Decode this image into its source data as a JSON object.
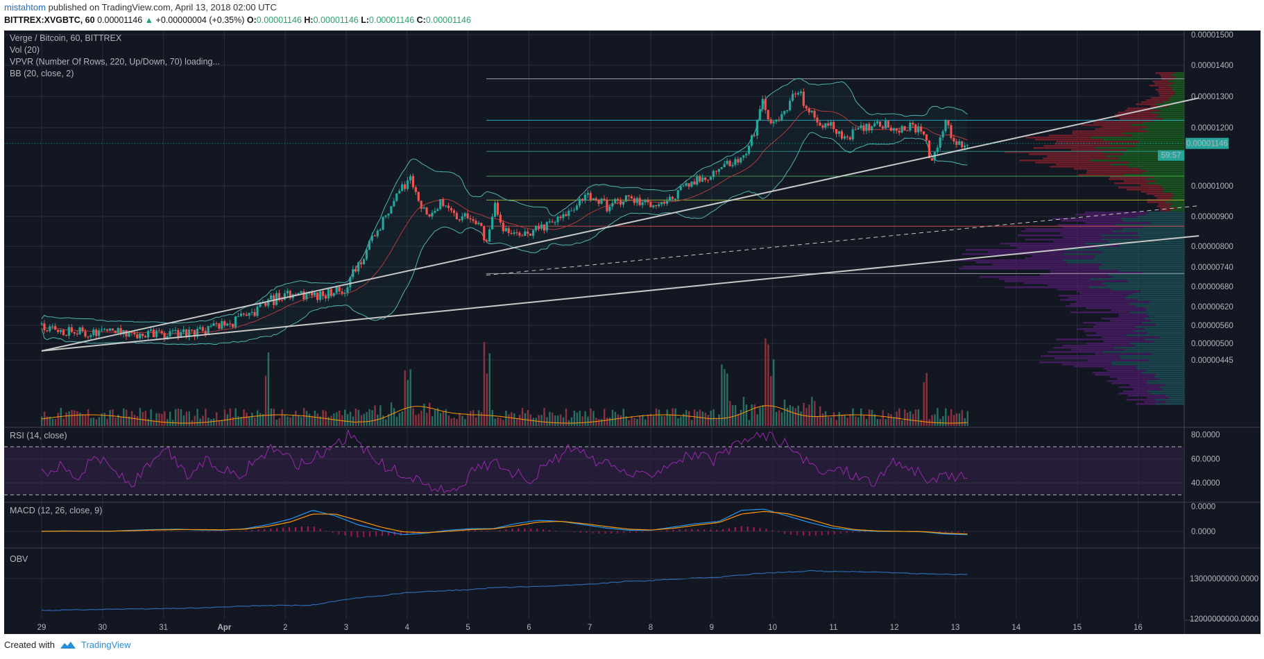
{
  "header": {
    "author": "mistahtom",
    "published": "published on TradingView.com, April 13, 2018 02:00 UTC"
  },
  "quote": {
    "symbol": "BITTREX:XVGBTC, 60",
    "price": "0.00001146",
    "change": "+0.00000004 (+0.35%)",
    "o_label": "O:",
    "o": "0.00001146",
    "h_label": "H:",
    "h": "0.00001146",
    "l_label": "L:",
    "l": "0.00001146",
    "c_label": "C:",
    "c": "0.00001146"
  },
  "legend": {
    "title": "Verge / Bitcoin, 60, BITTREX",
    "vol": "Vol (20)",
    "vpvr": "VPVR (Number Of Rows, 220, Up/Down, 70) loading...",
    "bb": "BB (20, close, 2)",
    "rsi": "RSI (14, close)",
    "macd": "MACD (12, 26, close, 9)",
    "obv": "OBV"
  },
  "colors": {
    "background": "#131722",
    "up": "#26a69a",
    "down": "#ef5350",
    "bb": "#4fb5b0",
    "rsi": "#9c27b0",
    "macd": "#2196f3",
    "signal": "#ff9800",
    "obv": "#2d6ab0",
    "trendline": "#c8c8c8"
  },
  "chart_data": [
    {
      "type": "candlestick",
      "title": "Verge / Bitcoin, 60, BITTREX",
      "x_tick_labels": [
        "29",
        "30",
        "31",
        "Apr",
        "2",
        "3",
        "4",
        "5",
        "6",
        "7",
        "8",
        "9",
        "10",
        "11",
        "12",
        "13",
        "14",
        "15",
        "16"
      ],
      "y_tick_labels": [
        "0.00001500",
        "0.00001400",
        "0.00001300",
        "0.00001200",
        "0.00001000",
        "0.00000900",
        "0.00000800",
        "0.00000740",
        "0.00000680",
        "0.00000620",
        "0.00000560",
        "0.00000500",
        "0.00000445"
      ],
      "y_ticks": [
        1.5e-05,
        1.4e-05,
        1.3e-05,
        1.2e-05,
        1e-05,
        9e-06,
        8e-06,
        7.4e-06,
        6.8e-06,
        6.2e-06,
        5.6e-06,
        5e-06,
        4.45e-06
      ],
      "last_price_label": "0.00001146",
      "countdown_label": "59:57",
      "close_path": [
        [
          0,
          5.5
        ],
        [
          0.5,
          5.4
        ],
        [
          1,
          5.3
        ],
        [
          1.2,
          5.5
        ],
        [
          1.5,
          5.3
        ],
        [
          2,
          5.3
        ],
        [
          2.6,
          5.4
        ],
        [
          3,
          5.6
        ],
        [
          3.4,
          5.9
        ],
        [
          3.6,
          6.2
        ],
        [
          3.9,
          6.5
        ],
        [
          4.2,
          6.6
        ],
        [
          4.6,
          6.5
        ],
        [
          5.0,
          6.8
        ],
        [
          5.3,
          7.8
        ],
        [
          5.6,
          8.8
        ],
        [
          5.9,
          9.9
        ],
        [
          6.05,
          10.3
        ],
        [
          6.2,
          9.4
        ],
        [
          6.4,
          9.1
        ],
        [
          6.6,
          9.5
        ],
        [
          6.8,
          9.0
        ],
        [
          7.0,
          9.0
        ],
        [
          7.2,
          8.6
        ],
        [
          7.3,
          8.2
        ],
        [
          7.45,
          9.4
        ],
        [
          7.6,
          8.5
        ],
        [
          7.8,
          8.3
        ],
        [
          8.0,
          8.4
        ],
        [
          8.4,
          8.8
        ],
        [
          8.6,
          9.0
        ],
        [
          8.85,
          9.6
        ],
        [
          9.0,
          9.7
        ],
        [
          9.3,
          9.3
        ],
        [
          9.6,
          9.6
        ],
        [
          9.9,
          9.4
        ],
        [
          10.3,
          9.5
        ],
        [
          10.6,
          10.0
        ],
        [
          10.9,
          10.3
        ],
        [
          11.2,
          10.7
        ],
        [
          11.5,
          10.9
        ],
        [
          11.7,
          11.8
        ],
        [
          11.85,
          12.9
        ],
        [
          12.0,
          12.0
        ],
        [
          12.2,
          12.5
        ],
        [
          12.4,
          13.2
        ],
        [
          12.7,
          12.2
        ],
        [
          13.0,
          12.0
        ],
        [
          13.2,
          11.7
        ],
        [
          13.45,
          11.9
        ],
        [
          13.7,
          12.2
        ],
        [
          14.0,
          12.0
        ],
        [
          14.3,
          12.0
        ],
        [
          14.5,
          11.9
        ],
        [
          14.6,
          10.7
        ],
        [
          14.75,
          11.8
        ],
        [
          14.85,
          12.1
        ],
        [
          15.0,
          11.4
        ],
        [
          15.2,
          11.46
        ]
      ],
      "trendlines": [
        {
          "x1": 0,
          "y1": 4.75,
          "x2": 19,
          "y2": 12.95
        },
        {
          "x1": 0,
          "y1": 4.75,
          "x2": 19,
          "y2": 8.35
        },
        {
          "x1": 7.3,
          "y1": 7.15,
          "x2": 19,
          "y2": 9.35,
          "dashed": true
        }
      ],
      "fib_levels": [
        {
          "x_start": 7.3,
          "value": 1.3563e-05,
          "color": "#b2b5be"
        },
        {
          "x_start": 7.3,
          "value": 1.2237e-05,
          "color": "#26c6da"
        },
        {
          "x_start": 7.3,
          "value": 1.1186e-05,
          "color": "#26a69a"
        },
        {
          "x_start": 7.3,
          "value": 1.0333e-05,
          "color": "#4caf50"
        },
        {
          "x_start": 7.3,
          "value": 9.536e-06,
          "color": "#c0ca33"
        },
        {
          "x_start": 7.3,
          "value": 8.671e-06,
          "color": "#ef5350"
        },
        {
          "x_start": 7.3,
          "value": 7.2e-06,
          "color": "#b2b5be"
        }
      ]
    },
    {
      "type": "line",
      "title": "RSI (14, close)",
      "y_tick_labels": [
        "80.0000",
        "60.0000",
        "40.0000"
      ],
      "ylim": [
        25,
        85
      ],
      "bands": [
        30,
        70
      ],
      "series": [
        {
          "values": [
            48,
            55,
            45,
            63,
            50,
            38,
            56,
            66,
            45,
            58,
            52,
            47,
            62,
            70,
            55,
            60,
            72,
            80,
            65,
            52,
            47,
            40,
            33,
            38,
            52,
            58,
            48,
            44,
            56,
            68,
            62,
            55,
            50,
            45,
            52,
            60,
            64,
            58,
            68,
            78,
            80,
            72,
            58,
            48,
            52,
            45,
            41,
            58,
            51,
            40,
            47,
            44
          ]
        }
      ]
    },
    {
      "type": "line",
      "title": "MACD (12, 26, close, 9)",
      "y_tick_labels": [
        "0.0000",
        "0.0000"
      ],
      "series": [
        {
          "name": "MACD",
          "values": [
            0,
            0.02,
            0.01,
            0,
            0.05,
            0.08,
            0.1,
            0.06,
            0.05,
            0.12,
            0.3,
            0.55,
            0.95,
            0.7,
            0.3,
            0.05,
            -0.15,
            -0.08,
            0.05,
            0.12,
            0.12,
            0.35,
            0.5,
            0.45,
            0.3,
            0.15,
            0.05,
            0.05,
            0.2,
            0.35,
            0.45,
            0.95,
            1.0,
            0.7,
            0.4,
            0.15,
            0.05,
            0.0,
            0.0,
            -0.02,
            -0.12,
            -0.15
          ]
        },
        {
          "name": "Signal",
          "values": [
            0,
            0.01,
            0.01,
            0.01,
            0.03,
            0.06,
            0.08,
            0.08,
            0.07,
            0.1,
            0.22,
            0.42,
            0.78,
            0.78,
            0.5,
            0.2,
            -0.02,
            -0.06,
            0.0,
            0.08,
            0.11,
            0.25,
            0.42,
            0.45,
            0.35,
            0.22,
            0.1,
            0.06,
            0.14,
            0.28,
            0.4,
            0.78,
            0.9,
            0.8,
            0.55,
            0.25,
            0.08,
            0.02,
            0.0,
            -0.01,
            -0.08,
            -0.12
          ]
        }
      ]
    },
    {
      "type": "line",
      "title": "OBV",
      "y_tick_labels": [
        "13000000000.0000",
        "12000000000.0000"
      ],
      "series": [
        {
          "values": [
            0,
            0.01,
            0.02,
            0.03,
            0.03,
            0.04,
            0.05,
            0.06,
            0.08,
            0.1,
            0.12,
            0.12,
            0.13,
            0.22,
            0.3,
            0.35,
            0.42,
            0.45,
            0.48,
            0.5,
            0.55,
            0.56,
            0.58,
            0.6,
            0.62,
            0.66,
            0.7,
            0.72,
            0.75,
            0.78,
            0.8,
            0.85,
            0.9,
            0.92,
            0.95,
            0.94,
            0.93,
            0.92,
            0.9,
            0.88,
            0.87,
            0.86
          ]
        }
      ]
    }
  ],
  "footer": {
    "created_with": "Created with",
    "brand": "TradingView"
  }
}
